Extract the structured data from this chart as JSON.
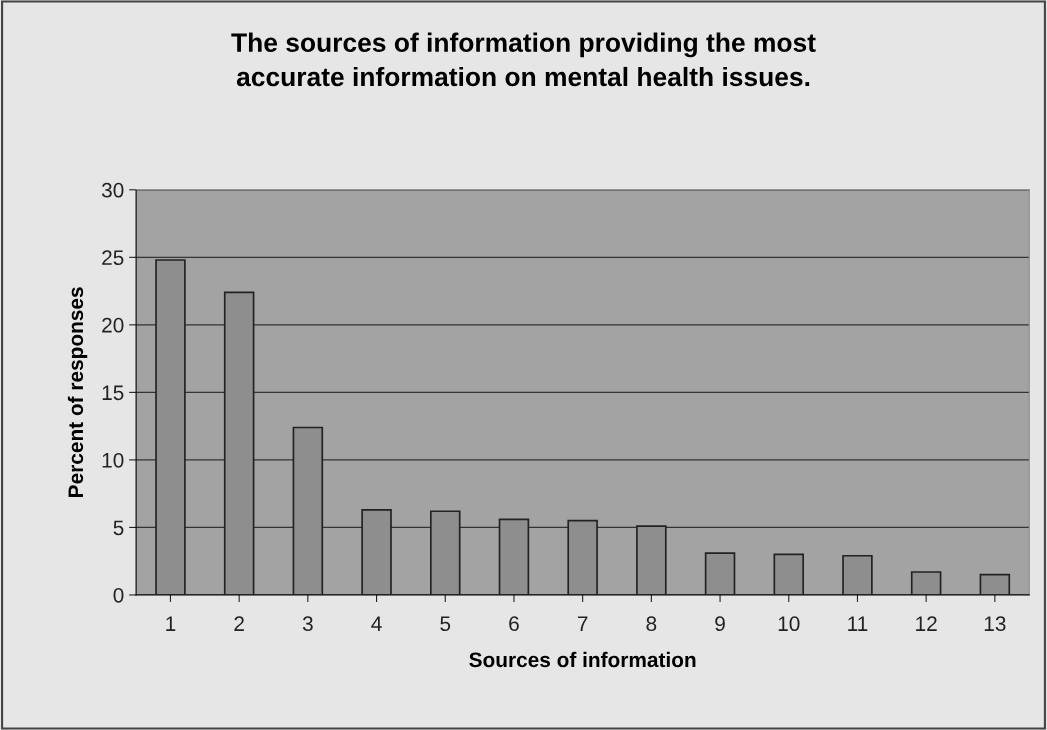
{
  "chart_data": {
    "type": "bar",
    "title": "The sources of information providing the most\naccurate information on mental health issues.",
    "xlabel": "Sources of information",
    "ylabel": "Percent of responses",
    "categories": [
      "1",
      "2",
      "3",
      "4",
      "5",
      "6",
      "7",
      "8",
      "9",
      "10",
      "11",
      "12",
      "13"
    ],
    "values": [
      24.8,
      22.4,
      12.4,
      6.3,
      6.2,
      5.6,
      5.5,
      5.1,
      3.1,
      3.0,
      2.9,
      1.7,
      1.5
    ],
    "color": "#8e8e8e",
    "ylim": [
      0,
      30
    ],
    "yticks": [
      0,
      5,
      10,
      15,
      20,
      25,
      30
    ],
    "grid": "y"
  }
}
